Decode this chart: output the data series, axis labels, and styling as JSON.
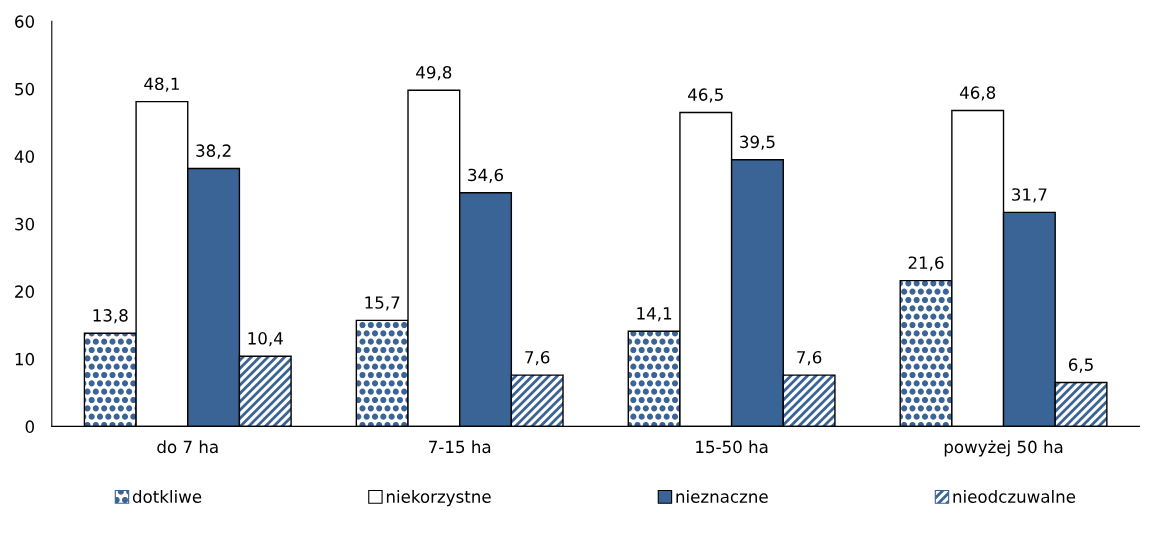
{
  "chart_data": {
    "type": "bar",
    "categories": [
      "do 7 ha",
      "7-15 ha",
      "15-50 ha",
      "powyżej 50 ha"
    ],
    "series": [
      {
        "name": "dotkliwe",
        "color": "#3a6496",
        "values": [
          13.8,
          15.7,
          14.1,
          21.6
        ],
        "value_labels": [
          "13,8",
          "15,7",
          "14,1",
          "21,6"
        ]
      },
      {
        "name": "niekorzystne",
        "color": "#ffffff",
        "values": [
          48.1,
          49.8,
          46.5,
          46.8
        ],
        "value_labels": [
          "48,1",
          "49,8",
          "46,5",
          "46,8"
        ]
      },
      {
        "name": "nieznaczne",
        "color": "#3a6496",
        "values": [
          38.2,
          34.6,
          39.5,
          31.7
        ],
        "value_labels": [
          "38,2",
          "34,6",
          "39,5",
          "31,7"
        ]
      },
      {
        "name": "nieodczuwalne",
        "color": "#3a6496",
        "values": [
          10.4,
          7.6,
          7.6,
          6.5
        ],
        "value_labels": [
          "10,4",
          "7,6",
          "7,6",
          "6,5"
        ]
      }
    ],
    "ylim": [
      0,
      60
    ],
    "yticks": [
      0,
      10,
      20,
      30,
      40,
      50,
      60
    ],
    "grid": false,
    "legend": "bottom"
  }
}
